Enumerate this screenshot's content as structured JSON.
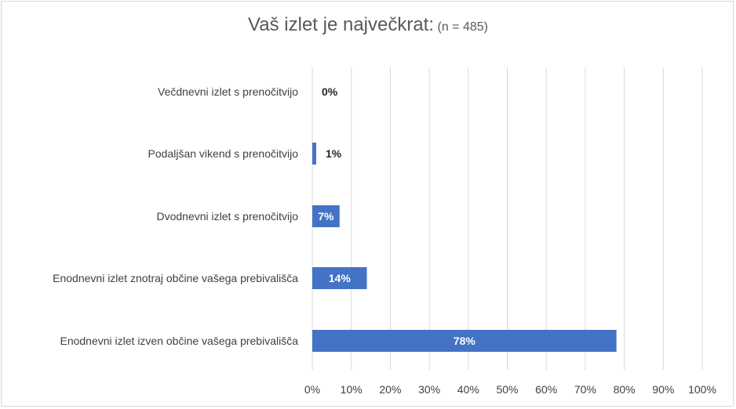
{
  "chart_data": {
    "type": "bar",
    "orientation": "horizontal",
    "title": "Vaš izlet je največkrat:",
    "subtitle": "(n = 485)",
    "categories": [
      "Večdnevni izlet s prenočitvijo",
      "Podaljšan vikend s prenočitvijo",
      "Dvodnevni izlet s prenočitvijo",
      "Enodnevni izlet znotraj občine vašega prebivališča",
      "Enodnevni izlet izven občine vašega prebivališča"
    ],
    "values": [
      0,
      1,
      7,
      14,
      78
    ],
    "data_labels": [
      "0%",
      "1%",
      "7%",
      "14%",
      "78%"
    ],
    "xlim": [
      0,
      100
    ],
    "xticks": [
      "0%",
      "10%",
      "20%",
      "30%",
      "40%",
      "50%",
      "60%",
      "70%",
      "80%",
      "90%",
      "100%"
    ],
    "grid": "vertical",
    "bar_color": "#4472c4",
    "label_color_outside": "#262626",
    "label_color_inside": "#ffffff"
  }
}
